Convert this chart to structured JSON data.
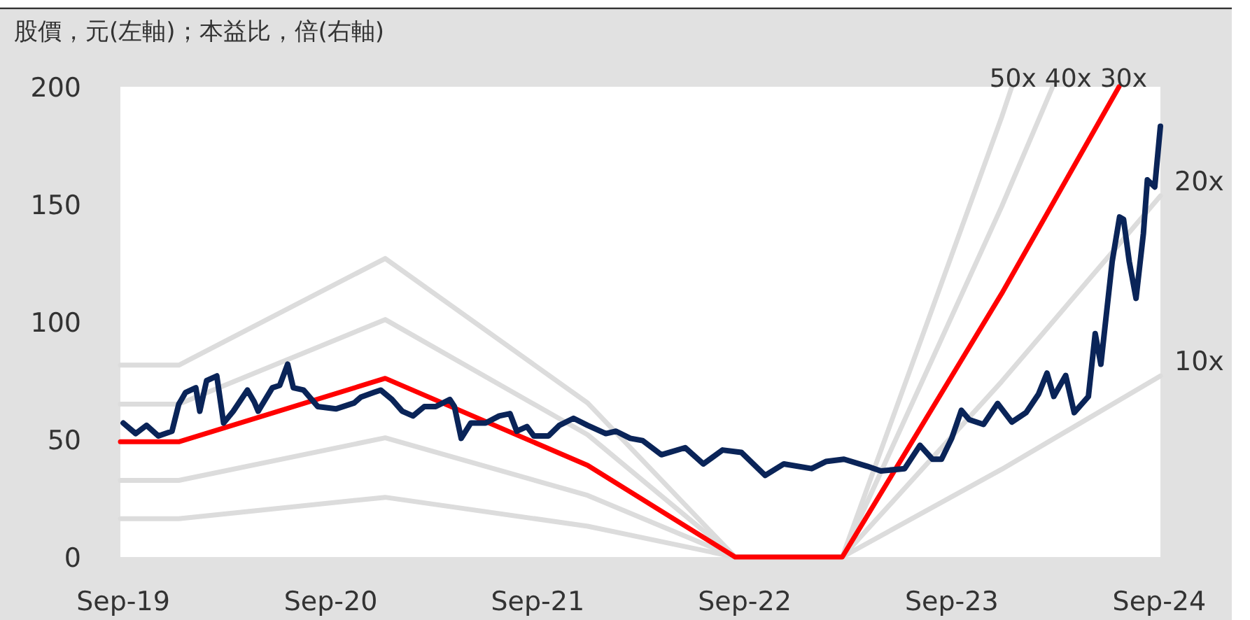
{
  "chart_data": {
    "type": "line",
    "title": "股價，元(左軸)；本益比，倍(右軸)",
    "xlim": [
      "2019-08-27",
      "2024-09-03"
    ],
    "ylim": [
      0,
      200
    ],
    "yticks": [
      0,
      50,
      100,
      150,
      200
    ],
    "xticks": [
      {
        "value": "2019-09-01",
        "label": "Sep-19"
      },
      {
        "value": "2020-09-01",
        "label": "Sep-20"
      },
      {
        "value": "2021-09-01",
        "label": "Sep-21"
      },
      {
        "value": "2022-09-01",
        "label": "Sep-22"
      },
      {
        "value": "2023-09-01",
        "label": "Sep-23"
      },
      {
        "value": "2024-09-01",
        "label": "Sep-24"
      }
    ],
    "grid": false,
    "legend": false,
    "marker": "none",
    "line_style": "solid",
    "series": [
      {
        "name": "50x",
        "color": "#dcdcdc",
        "x": [
          "2019-08-27",
          "2019-12-08",
          "2020-12-06",
          "2021-11-28",
          "2022-08-15",
          "2023-02-20",
          "2023-11-28",
          "2023-12-16"
        ],
        "values": [
          81.6,
          81.6,
          127,
          65.5,
          0,
          0,
          187,
          200
        ]
      },
      {
        "name": "40x",
        "color": "#dcdcdc",
        "x": [
          "2019-08-27",
          "2019-12-08",
          "2020-12-06",
          "2021-11-28",
          "2022-08-15",
          "2023-02-20",
          "2023-11-28",
          "2024-02-26"
        ],
        "values": [
          65,
          65,
          101,
          52,
          0,
          0,
          149,
          200
        ]
      },
      {
        "name": "20x",
        "color": "#dcdcdc",
        "x": [
          "2019-08-27",
          "2019-12-08",
          "2020-12-06",
          "2021-11-28",
          "2022-08-15",
          "2023-02-20",
          "2023-11-28",
          "2024-09-03"
        ],
        "values": [
          32.6,
          32.6,
          50.7,
          26.2,
          0,
          0,
          74.6,
          153.6
        ]
      },
      {
        "name": "10x",
        "color": "#dcdcdc",
        "x": [
          "2019-08-27",
          "2019-12-08",
          "2020-12-06",
          "2021-11-28",
          "2022-08-15",
          "2023-02-20",
          "2023-11-28",
          "2024-09-03"
        ],
        "values": [
          16.3,
          16.3,
          25.4,
          13.1,
          0,
          0,
          37.3,
          77
        ]
      },
      {
        "name": "30x",
        "color": "#ff0000",
        "x": [
          "2019-08-27",
          "2019-12-08",
          "2020-12-06",
          "2021-11-28",
          "2022-08-15",
          "2023-02-20",
          "2023-11-28",
          "2024-06-22"
        ],
        "values": [
          49,
          49,
          76,
          39,
          0,
          0,
          112,
          200
        ]
      },
      {
        "color": "#0a2458",
        "x": [
          "2019-09-01",
          "2019-09-23",
          "2019-10-12",
          "2019-11-02",
          "2019-11-26",
          "2019-12-08",
          "2019-12-20",
          "2020-01-07",
          "2020-01-14",
          "2020-01-26",
          "2020-02-13",
          "2020-02-25",
          "2020-03-13",
          "2020-04-07",
          "2020-04-19",
          "2020-04-26",
          "2020-05-21",
          "2020-06-03",
          "2020-06-17",
          "2020-06-27",
          "2020-07-15",
          "2020-08-09",
          "2020-09-10",
          "2020-10-12",
          "2020-10-24",
          "2020-11-16",
          "2020-11-28",
          "2020-12-18",
          "2021-01-05",
          "2021-01-24",
          "2021-02-13",
          "2021-03-05",
          "2021-03-30",
          "2021-04-07",
          "2021-04-19",
          "2021-05-06",
          "2021-06-01",
          "2021-06-25",
          "2021-07-14",
          "2021-07-26",
          "2021-08-13",
          "2021-08-25",
          "2021-09-20",
          "2021-10-09",
          "2021-11-03",
          "2021-11-28",
          "2021-12-30",
          "2022-01-17",
          "2022-02-11",
          "2022-03-05",
          "2022-04-07",
          "2022-05-19",
          "2022-06-20",
          "2022-07-24",
          "2022-08-26",
          "2022-10-07",
          "2022-11-09",
          "2022-12-28",
          "2023-01-22",
          "2023-02-23",
          "2023-04-05",
          "2023-04-29",
          "2023-06-10",
          "2023-07-07",
          "2023-07-29",
          "2023-08-14",
          "2023-09-01",
          "2023-09-18",
          "2023-10-02",
          "2023-10-27",
          "2023-11-21",
          "2023-12-16",
          "2024-01-10",
          "2024-02-01",
          "2024-02-16",
          "2024-02-28",
          "2024-03-20",
          "2024-04-04",
          "2024-04-29",
          "2024-05-11",
          "2024-05-21",
          "2024-06-10",
          "2024-06-23",
          "2024-06-30",
          "2024-07-10",
          "2024-07-22",
          "2024-08-04",
          "2024-08-11",
          "2024-08-24",
          "2024-09-03"
        ],
        "values": [
          57,
          52.5,
          56,
          51.5,
          53.5,
          65,
          70,
          72,
          62,
          75,
          77,
          57,
          62,
          71,
          66,
          62,
          72,
          73,
          82,
          72,
          71,
          64,
          63,
          65.5,
          68,
          70,
          71,
          67,
          62,
          60,
          64,
          64,
          67,
          64,
          50.5,
          57,
          57,
          60,
          61,
          53.5,
          55.5,
          51.5,
          51.5,
          56,
          59,
          56,
          52.5,
          53.5,
          50.5,
          49.5,
          43.5,
          46.5,
          39.6,
          45.5,
          44.5,
          34.7,
          39.6,
          37.6,
          40.6,
          41.6,
          38.6,
          36.6,
          37.6,
          47.5,
          41.6,
          41.6,
          50.5,
          62.4,
          58.4,
          56.4,
          65.3,
          57.4,
          61.4,
          69.3,
          78.2,
          68.3,
          77.2,
          61.4,
          68.3,
          95,
          82,
          125.7,
          144.6,
          143.6,
          125.7,
          110,
          137.6,
          160.4,
          157.4,
          183.2
        ]
      }
    ]
  }
}
